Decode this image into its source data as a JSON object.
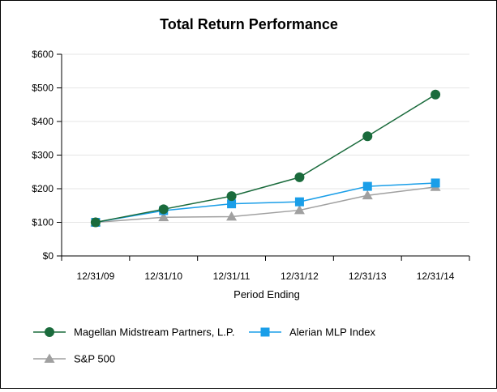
{
  "chart_data": {
    "type": "line",
    "title": "Total Return Performance",
    "xlabel": "Period Ending",
    "ylabel": "",
    "categories": [
      "12/31/09",
      "12/31/10",
      "12/31/11",
      "12/31/12",
      "12/31/13",
      "12/31/14"
    ],
    "ylim": [
      0,
      600
    ],
    "yticks": [
      0,
      100,
      200,
      300,
      400,
      500,
      600
    ],
    "ytick_labels": [
      "$0",
      "$100",
      "$200",
      "$300",
      "$400",
      "$500",
      "$600"
    ],
    "grid": true,
    "legend_position": "bottom",
    "series": [
      {
        "name": "Magellan Midstream Partners, L.P.",
        "values": [
          100,
          139,
          178,
          234,
          356,
          480
        ],
        "color": "#1a6b3c",
        "marker": "circle"
      },
      {
        "name": "Alerian MLP Index",
        "values": [
          100,
          135,
          155,
          161,
          207,
          217
        ],
        "color": "#1a9ee8",
        "marker": "square"
      },
      {
        "name": "S&P 500",
        "values": [
          100,
          115,
          117,
          136,
          180,
          205
        ],
        "color": "#a0a0a0",
        "marker": "triangle"
      }
    ]
  }
}
